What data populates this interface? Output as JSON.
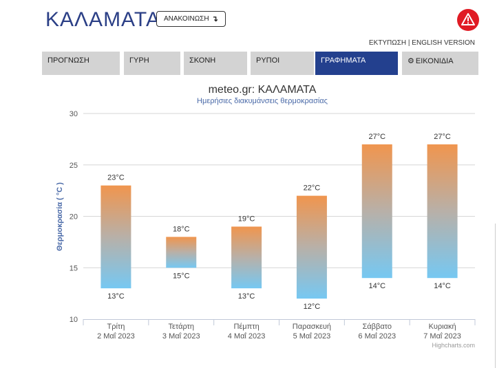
{
  "header": {
    "city": "ΚΑΛΑΜΑΤΑ",
    "announce_label": "ΑΝΑΚΟΙΝΩΣΗ",
    "announce_arrow": "↴",
    "warning_icon": "warning-triangle-icon",
    "warning_color": "#e01b24"
  },
  "links": {
    "print": "ΕΚΤΥΠΩΣΗ",
    "separator": " | ",
    "english": "ENGLISH VERSION"
  },
  "nav": {
    "tabs": [
      {
        "label": "ΠΡΟΓΝΩΣΗ",
        "active": false
      },
      {
        "label": "ΓΥΡΗ",
        "active": false
      },
      {
        "label": "ΣΚΟΝΗ",
        "active": false
      },
      {
        "label": "ΡΥΠΟΙ",
        "active": false
      },
      {
        "label": "ΓΡΑΦΗΜΑΤΑ",
        "active": true
      },
      {
        "label": "ΕΙΚΟΝΙΔΙΑ",
        "active": false,
        "icon": "gear-icon"
      }
    ],
    "active_color": "#23408e",
    "inactive_color": "#d3d3d3"
  },
  "chart_data": {
    "type": "bar",
    "subtype": "columnrange",
    "title": "meteo.gr: ΚΑΛΑΜΑΤΑ",
    "subtitle": "Ημερήσιες διακυμάνσεις θερμοκρασίας",
    "ylabel": "Θερμοκρασία ( °C )",
    "ylim": [
      10,
      30
    ],
    "yticks": [
      10,
      15,
      20,
      25,
      30
    ],
    "grid": true,
    "categories": [
      {
        "day": "Τρίτη",
        "date": "2 Μαΐ 2023"
      },
      {
        "day": "Τετάρτη",
        "date": "3 Μαΐ 2023"
      },
      {
        "day": "Πέμπτη",
        "date": "4 Μαΐ 2023"
      },
      {
        "day": "Παρασκευή",
        "date": "5 Μαΐ 2023"
      },
      {
        "day": "Σάββατο",
        "date": "6 Μαΐ 2023"
      },
      {
        "day": "Κυριακή",
        "date": "7 Μαΐ 2023"
      }
    ],
    "low": [
      13,
      15,
      13,
      12,
      14,
      14
    ],
    "high": [
      23,
      18,
      19,
      22,
      27,
      27
    ],
    "unit": "°C",
    "colors": {
      "top": "#f0954e",
      "bottom": "#76c8f2"
    },
    "credits": "Highcharts.com"
  }
}
